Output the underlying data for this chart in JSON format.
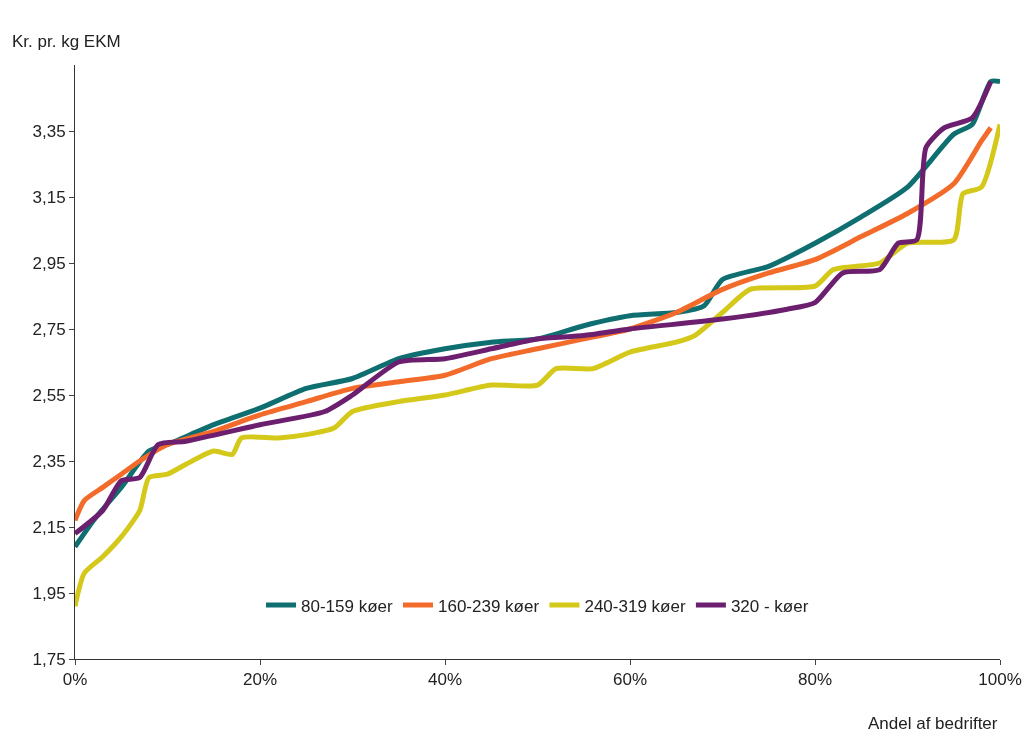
{
  "chart_data": {
    "type": "line",
    "ylabel": "Kr. pr. kg EKM",
    "xlabel": "Andel af bedrifter",
    "xlim": [
      0,
      100
    ],
    "xticks": [
      {
        "value": 0,
        "label": "0%"
      },
      {
        "value": 20,
        "label": "20%"
      },
      {
        "value": 40,
        "label": "40%"
      },
      {
        "value": 60,
        "label": "60%"
      },
      {
        "value": 80,
        "label": "80%"
      },
      {
        "value": 100,
        "label": "100%"
      }
    ],
    "ylim": [
      1.75,
      3.55
    ],
    "yticks": [
      {
        "value": 1.75,
        "label": "1,75"
      },
      {
        "value": 1.95,
        "label": "1,95"
      },
      {
        "value": 2.15,
        "label": "2,15"
      },
      {
        "value": 2.35,
        "label": "2,35"
      },
      {
        "value": 2.55,
        "label": "2,55"
      },
      {
        "value": 2.75,
        "label": "2,75"
      },
      {
        "value": 2.95,
        "label": "2,95"
      },
      {
        "value": 3.15,
        "label": "3,15"
      },
      {
        "value": 3.35,
        "label": "3,35"
      }
    ],
    "legend": "bottom",
    "marker": "none",
    "line_style": "solid",
    "series": [
      {
        "name": "80-159 køer",
        "color": "#0f6e70",
        "x": [
          0,
          2,
          5,
          8,
          10,
          15,
          20,
          25,
          30,
          35,
          40,
          45,
          50,
          55,
          60,
          65,
          68,
          70,
          75,
          80,
          85,
          90,
          95,
          97,
          99,
          100
        ],
        "values": [
          2.09,
          2.17,
          2.27,
          2.38,
          2.4,
          2.46,
          2.51,
          2.57,
          2.6,
          2.66,
          2.69,
          2.71,
          2.72,
          2.76,
          2.79,
          2.8,
          2.82,
          2.9,
          2.94,
          3.01,
          3.09,
          3.18,
          3.34,
          3.37,
          3.5,
          3.5
        ]
      },
      {
        "name": "160-239 køer",
        "color": "#f26b2a",
        "x": [
          0,
          1,
          3,
          5,
          7,
          10,
          15,
          20,
          25,
          30,
          35,
          40,
          45,
          50,
          55,
          60,
          65,
          70,
          75,
          80,
          85,
          90,
          95,
          98,
          99
        ],
        "values": [
          2.17,
          2.23,
          2.27,
          2.31,
          2.35,
          2.4,
          2.44,
          2.49,
          2.53,
          2.57,
          2.59,
          2.61,
          2.66,
          2.69,
          2.72,
          2.75,
          2.8,
          2.87,
          2.92,
          2.96,
          3.03,
          3.1,
          3.19,
          3.32,
          3.36
        ]
      },
      {
        "name": "240-319 køer",
        "color": "#d4c91a",
        "x": [
          0,
          1,
          3,
          5,
          7,
          8,
          10,
          12,
          15,
          17,
          18,
          22,
          25,
          28,
          30,
          35,
          40,
          45,
          50,
          52,
          56,
          60,
          65,
          67,
          70,
          73,
          80,
          82,
          87,
          90,
          95,
          96,
          98,
          100
        ],
        "values": [
          1.91,
          2.01,
          2.06,
          2.12,
          2.2,
          2.3,
          2.31,
          2.34,
          2.38,
          2.37,
          2.42,
          2.42,
          2.43,
          2.45,
          2.5,
          2.53,
          2.55,
          2.58,
          2.58,
          2.63,
          2.63,
          2.68,
          2.71,
          2.73,
          2.8,
          2.87,
          2.88,
          2.93,
          2.95,
          3.01,
          3.02,
          3.16,
          3.18,
          3.37
        ]
      },
      {
        "name": "320 - køer",
        "color": "#6b1f6e",
        "x": [
          0,
          3,
          5,
          7,
          9,
          12,
          20,
          27,
          30,
          35,
          40,
          45,
          50,
          55,
          60,
          70,
          77,
          80,
          83,
          87,
          89,
          91,
          92,
          94,
          97,
          99
        ],
        "values": [
          2.13,
          2.2,
          2.29,
          2.3,
          2.4,
          2.41,
          2.46,
          2.5,
          2.55,
          2.65,
          2.66,
          2.69,
          2.72,
          2.73,
          2.75,
          2.78,
          2.81,
          2.83,
          2.92,
          2.93,
          3.01,
          3.02,
          3.3,
          3.36,
          3.39,
          3.5
        ]
      }
    ]
  }
}
